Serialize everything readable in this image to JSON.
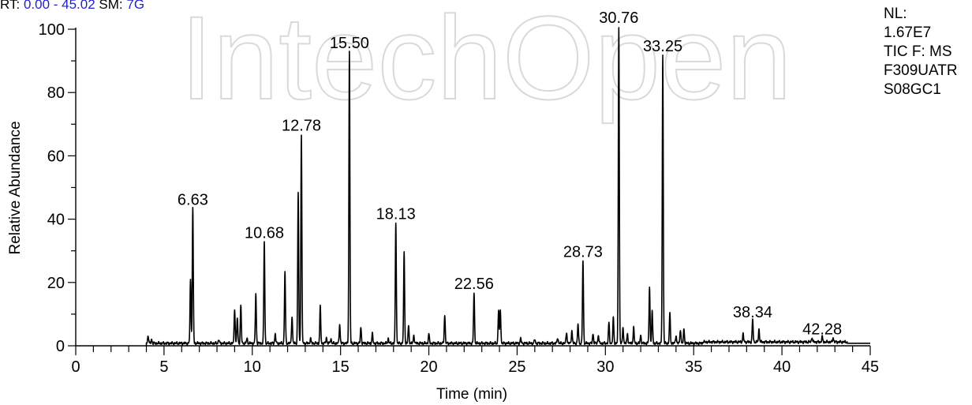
{
  "header": {
    "rt_label": "RT:",
    "rt_range": "0.00 - 45.02",
    "sm_label": "SM:",
    "sm_value": "7G"
  },
  "watermark": {
    "text": "IntechOpen",
    "color": "#d9d9d9"
  },
  "side_info": {
    "nl_label": "NL:",
    "nl_value": "1.67E7",
    "filter": "TIC F:  MS",
    "file_1": "F309UATR",
    "file_2": "S08GC1"
  },
  "chart_data": {
    "type": "line",
    "title": "",
    "xlabel": "Time (min)",
    "ylabel": "Relative Abundance",
    "xlim": [
      0,
      45
    ],
    "ylim": [
      0,
      100
    ],
    "x_ticks": [
      0,
      5,
      10,
      15,
      20,
      25,
      30,
      35,
      40,
      45
    ],
    "y_ticks": [
      0,
      20,
      40,
      60,
      80,
      100
    ],
    "x_minor_step": 1,
    "y_minor_step": 10,
    "grid": false,
    "line_color": "#000000",
    "baseline": 0.8,
    "peaks": [
      {
        "x": 4.1,
        "y": 2.5
      },
      {
        "x": 4.3,
        "y": 1.2
      },
      {
        "x": 6.5,
        "y": 20
      },
      {
        "x": 6.63,
        "y": 42.5,
        "label": "6.63"
      },
      {
        "x": 8.1,
        "y": 1.2
      },
      {
        "x": 9.0,
        "y": 11
      },
      {
        "x": 9.15,
        "y": 8
      },
      {
        "x": 9.35,
        "y": 12
      },
      {
        "x": 9.7,
        "y": 1.5
      },
      {
        "x": 10.2,
        "y": 15.5
      },
      {
        "x": 10.68,
        "y": 32,
        "label": "10.68"
      },
      {
        "x": 11.3,
        "y": 3
      },
      {
        "x": 11.85,
        "y": 22.5
      },
      {
        "x": 12.25,
        "y": 8.5
      },
      {
        "x": 12.6,
        "y": 47.5
      },
      {
        "x": 12.78,
        "y": 66,
        "label": "12.78"
      },
      {
        "x": 13.3,
        "y": 1.5
      },
      {
        "x": 13.85,
        "y": 11.5
      },
      {
        "x": 14.2,
        "y": 1.8
      },
      {
        "x": 14.45,
        "y": 1.5
      },
      {
        "x": 14.95,
        "y": 6
      },
      {
        "x": 15.5,
        "y": 92,
        "label": "15.50"
      },
      {
        "x": 16.15,
        "y": 5
      },
      {
        "x": 16.8,
        "y": 3
      },
      {
        "x": 17.7,
        "y": 1.5
      },
      {
        "x": 18.13,
        "y": 38,
        "label": "18.13"
      },
      {
        "x": 18.6,
        "y": 28.5
      },
      {
        "x": 18.85,
        "y": 5.5
      },
      {
        "x": 19.15,
        "y": 2.5
      },
      {
        "x": 20.0,
        "y": 3
      },
      {
        "x": 20.9,
        "y": 9
      },
      {
        "x": 22.56,
        "y": 16,
        "label": "22.56"
      },
      {
        "x": 23.95,
        "y": 10.5
      },
      {
        "x": 24.05,
        "y": 10.5
      },
      {
        "x": 25.2,
        "y": 1.5
      },
      {
        "x": 26.0,
        "y": 1.2
      },
      {
        "x": 27.3,
        "y": 1.8
      },
      {
        "x": 27.8,
        "y": 3.5
      },
      {
        "x": 28.1,
        "y": 4
      },
      {
        "x": 28.45,
        "y": 6
      },
      {
        "x": 28.73,
        "y": 26,
        "label": "28.73"
      },
      {
        "x": 29.3,
        "y": 3
      },
      {
        "x": 29.6,
        "y": 2.5
      },
      {
        "x": 30.2,
        "y": 6.5
      },
      {
        "x": 30.45,
        "y": 8
      },
      {
        "x": 30.76,
        "y": 100,
        "label": "30.76"
      },
      {
        "x": 31.0,
        "y": 5
      },
      {
        "x": 31.25,
        "y": 3
      },
      {
        "x": 31.6,
        "y": 5
      },
      {
        "x": 32.0,
        "y": 2.5
      },
      {
        "x": 32.5,
        "y": 17.5
      },
      {
        "x": 32.65,
        "y": 10
      },
      {
        "x": 33.25,
        "y": 91,
        "label": "33.25"
      },
      {
        "x": 33.65,
        "y": 9.5
      },
      {
        "x": 34.0,
        "y": 2.5
      },
      {
        "x": 34.25,
        "y": 4.5
      },
      {
        "x": 34.45,
        "y": 4.5
      },
      {
        "x": 37.8,
        "y": 2.5
      },
      {
        "x": 38.34,
        "y": 7,
        "label": "38.34"
      },
      {
        "x": 38.7,
        "y": 4
      },
      {
        "x": 41.7,
        "y": 1.5
      },
      {
        "x": 42.28,
        "y": 1.6,
        "label": "42.28"
      },
      {
        "x": 42.9,
        "y": 1.4
      }
    ]
  }
}
